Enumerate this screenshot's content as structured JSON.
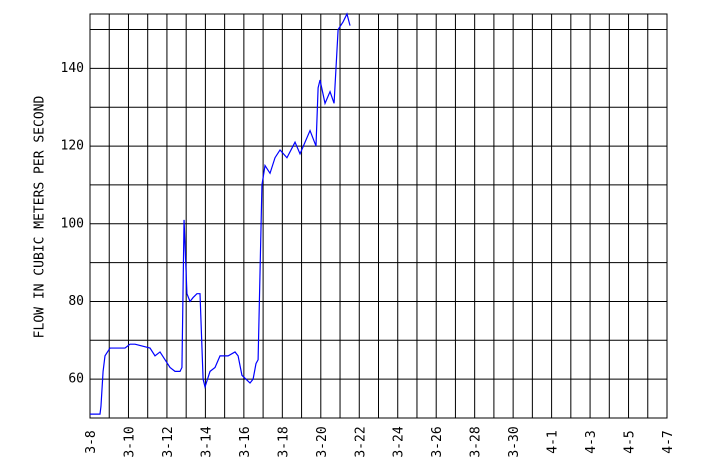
{
  "chart_data": {
    "type": "line",
    "y_label": "FLOW IN CUBIC METERS PER SECOND",
    "xlim": [
      0,
      30
    ],
    "xticks": [
      {
        "value": 0,
        "label": "3-8"
      },
      {
        "value": 2,
        "label": "3-10"
      },
      {
        "value": 4,
        "label": "3-12"
      },
      {
        "value": 6,
        "label": "3-14"
      },
      {
        "value": 8,
        "label": "3-16"
      },
      {
        "value": 10,
        "label": "3-18"
      },
      {
        "value": 12,
        "label": "3-20"
      },
      {
        "value": 14,
        "label": "3-22"
      },
      {
        "value": 16,
        "label": "3-24"
      },
      {
        "value": 18,
        "label": "3-26"
      },
      {
        "value": 20,
        "label": "3-28"
      },
      {
        "value": 22,
        "label": "3-30"
      },
      {
        "value": 24,
        "label": "4-1"
      },
      {
        "value": 26,
        "label": "4-3"
      },
      {
        "value": 28,
        "label": "4-5"
      },
      {
        "value": 30,
        "label": "4-7"
      }
    ],
    "xminor": [
      1,
      3,
      5,
      7,
      9,
      11,
      13,
      15,
      17,
      19,
      21,
      23,
      25,
      27,
      29
    ],
    "ylim": [
      50,
      154
    ],
    "yticks": [
      60,
      80,
      100,
      120,
      140
    ],
    "yminor": [
      50,
      70,
      90,
      110,
      130,
      150
    ],
    "grid": true,
    "series": [
      {
        "color": "#0000ff",
        "x": [
          0,
          0.52,
          0.57,
          0.68,
          0.78,
          1.04,
          1.82,
          2.08,
          2.34,
          3.12,
          3.38,
          3.64,
          3.9,
          4.16,
          4.42,
          4.68,
          4.78,
          4.89,
          5.04,
          5.2,
          5.36,
          5.56,
          5.72,
          5.88,
          5.98,
          6.24,
          6.5,
          6.76,
          7.18,
          7.54,
          7.7,
          7.9,
          8.11,
          8.32,
          8.48,
          8.63,
          8.74,
          8.94,
          9.1,
          9.36,
          9.62,
          9.88,
          10.24,
          10.66,
          10.92,
          11.44,
          11.75,
          11.86,
          11.96,
          12.22,
          12.48,
          12.69,
          12.9,
          13.16,
          13.36,
          13.52
        ],
        "values": [
          51,
          51,
          53,
          62,
          66,
          68,
          68,
          69,
          69,
          68,
          66,
          67,
          65,
          63,
          62,
          62,
          63,
          101,
          82,
          80,
          81,
          82,
          82,
          60,
          58,
          62,
          63,
          66,
          66,
          67,
          66,
          61,
          60,
          59,
          60,
          64,
          65,
          110,
          115,
          113,
          117,
          119,
          117,
          121,
          118,
          124,
          120,
          135,
          137,
          131,
          134,
          131,
          150,
          152,
          154,
          151
        ]
      }
    ]
  }
}
